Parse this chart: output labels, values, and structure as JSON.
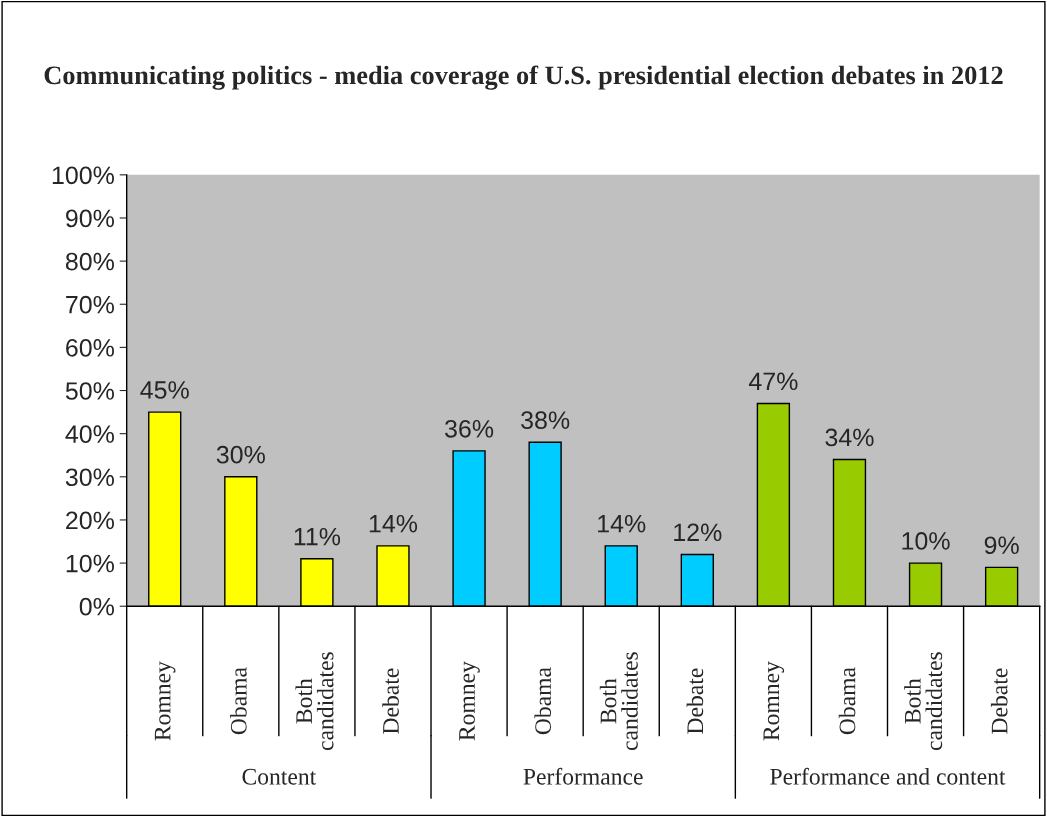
{
  "chart_data": {
    "type": "bar",
    "title": "Communicating politics - media coverage of U.S. presidential election debates in 2012",
    "categories": [
      "Romney",
      "Obama",
      "Both\ncandidates",
      "Debate",
      "Romney",
      "Obama",
      "Both\ncandidates",
      "Debate",
      "Romney",
      "Obama",
      "Both\ncandidates",
      "Debate"
    ],
    "values": [
      45,
      30,
      11,
      14,
      36,
      38,
      14,
      12,
      47,
      34,
      10,
      9
    ],
    "colors": [
      "#ffff00",
      "#ffff00",
      "#ffff00",
      "#ffff00",
      "#00ccff",
      "#00ccff",
      "#00ccff",
      "#00ccff",
      "#99cc00",
      "#99cc00",
      "#99cc00",
      "#99cc00"
    ],
    "ylim": [
      0,
      100
    ],
    "yticks": [
      {
        "value": 0,
        "label": "0%"
      },
      {
        "value": 10,
        "label": "10%"
      },
      {
        "value": 20,
        "label": "20%"
      },
      {
        "value": 30,
        "label": "30%"
      },
      {
        "value": 40,
        "label": "40%"
      },
      {
        "value": 50,
        "label": "50%"
      },
      {
        "value": 60,
        "label": "60%"
      },
      {
        "value": 70,
        "label": "70%"
      },
      {
        "value": 80,
        "label": "80%"
      },
      {
        "value": 90,
        "label": "90%"
      },
      {
        "value": 100,
        "label": "100%"
      }
    ],
    "value_labels": [
      "45%",
      "30%",
      "11%",
      "14%",
      "36%",
      "38%",
      "14%",
      "12%",
      "47%",
      "34%",
      "10%",
      "9%"
    ],
    "annotations": [
      "Content",
      "Performance",
      "Performance and content"
    ],
    "grid": false,
    "legend": false
  }
}
